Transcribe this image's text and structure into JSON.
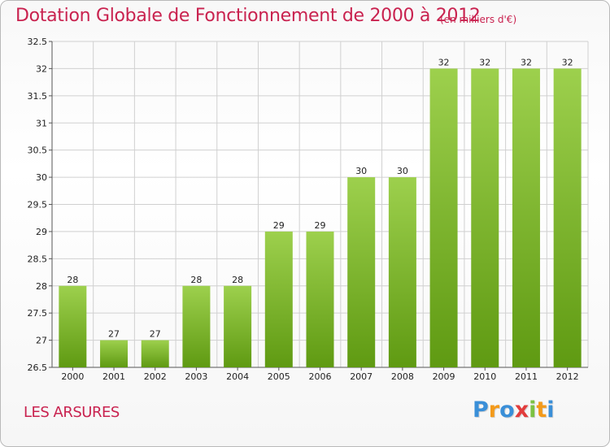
{
  "chart_data": {
    "type": "bar",
    "title": "Dotation Globale de Fonctionnement de 2000 à 2012",
    "subtitle": "(en milliers d'€)",
    "categories": [
      "2000",
      "2001",
      "2002",
      "2003",
      "2004",
      "2005",
      "2006",
      "2007",
      "2008",
      "2009",
      "2010",
      "2011",
      "2012"
    ],
    "values": [
      28,
      27,
      27,
      28,
      28,
      29,
      29,
      30,
      30,
      32,
      32,
      32,
      32
    ],
    "ylim": [
      26.5,
      32.5
    ],
    "yticks": [
      26.5,
      27,
      27.5,
      28,
      28.5,
      29,
      29.5,
      30,
      30.5,
      31,
      31.5,
      32,
      32.5
    ],
    "ytick_labels": [
      "26.5",
      "27",
      "27.5",
      "28",
      "28.5",
      "29",
      "29.5",
      "30",
      "30.5",
      "31",
      "31.5",
      "32",
      "32.5"
    ],
    "grid": true,
    "bar_color_top": "#9dd04d",
    "bar_color_bottom": "#5f9a12"
  },
  "commune_name": "LES ARSURES",
  "logo": {
    "letters": [
      "P",
      "r",
      "o",
      "x",
      "i",
      "t",
      "i"
    ],
    "colors": [
      "#3a8fd8",
      "#f39a1a",
      "#3a8fd8",
      "#e23c3c",
      "#7cc242",
      "#f39a1a",
      "#3a8fd8"
    ]
  }
}
